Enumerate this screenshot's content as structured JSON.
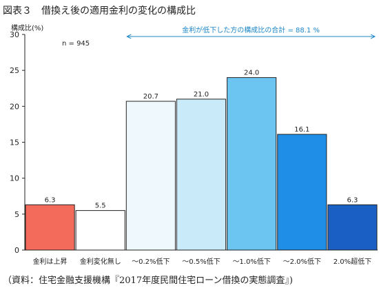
{
  "figure_title": "図表３　借換え後の適用金利の変化の構成比",
  "source_note": "（資料：住宅金融支援機構『2017年度民間住宅ローン借換の実態調査』)",
  "chart_data": {
    "type": "bar",
    "ylabel": "構成比(%)",
    "ylim": [
      0,
      30
    ],
    "yticks": [
      0,
      5,
      10,
      15,
      20,
      25,
      30
    ],
    "grid": false,
    "categories": [
      "金利は上昇",
      "金利変化無し",
      "～0.2%低下",
      "～0.5%低下",
      "～1.0%低下",
      "～2.0%低下",
      "2.0%超低下"
    ],
    "values": [
      6.3,
      5.5,
      20.7,
      21.0,
      24.0,
      16.1,
      6.3
    ],
    "value_labels": [
      "6.3",
      "5.5",
      "20.7",
      "21.0",
      "24.0",
      "16.1",
      "6.3"
    ],
    "colors": [
      "#f26b5b",
      "#ffffff",
      "#eef8fd",
      "#c9eaf8",
      "#6cc4f0",
      "#1f8ee6",
      "#1a5fc4"
    ],
    "sample_note": "n = 945",
    "annotation": {
      "text": "金利が低下した方の構成比の合計 = 88.1 %",
      "from_category": 2,
      "to_category": 6,
      "color": "#1b86c7"
    }
  }
}
